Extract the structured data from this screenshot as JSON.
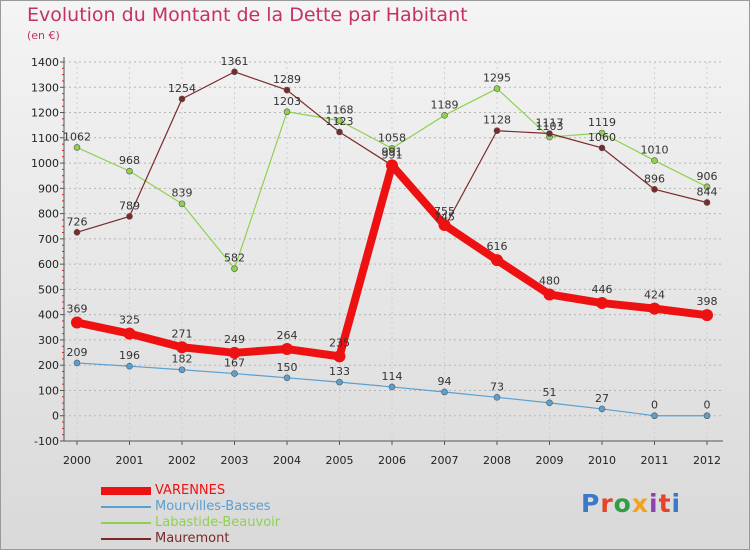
{
  "title": "Evolution du Montant de la Dette par Habitant",
  "unit": "(en €)",
  "logo": {
    "text": "Proxiti",
    "colors": [
      "#3a78c8",
      "#e5442a",
      "#2f9e44",
      "#f3a21d",
      "#8e44ad",
      "#e5442a",
      "#3a78c8"
    ]
  },
  "chart_data": {
    "type": "line",
    "title": "Evolution du Montant de la Dette par Habitant",
    "ylabel": "(en €)",
    "xlabel": "",
    "ylim": [
      -100,
      1400
    ],
    "yticks": [
      -100,
      0,
      100,
      200,
      300,
      400,
      500,
      600,
      700,
      800,
      900,
      1000,
      1100,
      1200,
      1300,
      1400
    ],
    "categories": [
      "2000",
      "2001",
      "2002",
      "2003",
      "2004",
      "2005",
      "2006",
      "2007",
      "2008",
      "2009",
      "2010",
      "2011",
      "2012"
    ],
    "grid": "horizontal dashed",
    "legend": "bottom-left",
    "series": [
      {
        "name": "VARENNES",
        "color": "#ee1111",
        "values": [
          369,
          325,
          271,
          249,
          264,
          235,
          991,
          755,
          616,
          480,
          446,
          424,
          398
        ]
      },
      {
        "name": "Mourvilles-Basses",
        "color": "#5aa0d0",
        "values": [
          209,
          196,
          182,
          167,
          150,
          133,
          114,
          94,
          73,
          51,
          27,
          0,
          0
        ]
      },
      {
        "name": "Labastide-Beauvoir",
        "color": "#8fd14f",
        "values": [
          1062,
          968,
          839,
          582,
          1203,
          1168,
          1058,
          1189,
          1295,
          1103,
          1119,
          1010,
          906
        ]
      },
      {
        "name": "Mauremont",
        "color": "#7a2a2a",
        "values": [
          726,
          789,
          1254,
          1361,
          1289,
          1123,
          991,
          745,
          1128,
          1117,
          1060,
          896,
          844
        ]
      }
    ]
  }
}
